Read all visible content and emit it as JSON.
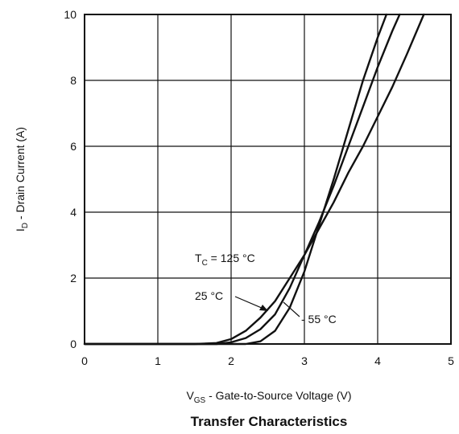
{
  "chart_data": {
    "type": "line",
    "title": "Transfer Characteristics",
    "xlabel": {
      "main": "V",
      "sub": "GS",
      "rest": " - Gate-to-Source Voltage (V)"
    },
    "ylabel": {
      "main": "I",
      "sub": "D",
      "rest": " - Drain Current (A)"
    },
    "xlim": [
      0,
      5
    ],
    "ylim": [
      0,
      10
    ],
    "xticks": [
      "0",
      "1",
      "2",
      "3",
      "4",
      "5"
    ],
    "yticks": [
      "0",
      "2",
      "4",
      "6",
      "8",
      "10"
    ],
    "grid": true,
    "series": [
      {
        "name": "125 °C",
        "x": [
          0,
          1.5,
          1.8,
          2.0,
          2.2,
          2.4,
          2.6,
          2.8,
          3.0,
          3.2,
          3.4,
          3.6,
          3.8,
          4.0,
          4.2,
          4.4,
          4.63
        ],
        "y": [
          0,
          0,
          0.03,
          0.15,
          0.4,
          0.8,
          1.3,
          2.0,
          2.7,
          3.5,
          4.3,
          5.2,
          6.0,
          6.9,
          7.8,
          8.8,
          10
        ]
      },
      {
        "name": "25 °C",
        "x": [
          0,
          1.8,
          2.0,
          2.2,
          2.4,
          2.6,
          2.8,
          3.0,
          3.2,
          3.4,
          3.6,
          3.8,
          4.0,
          4.2,
          4.3
        ],
        "y": [
          0,
          0,
          0.05,
          0.18,
          0.45,
          0.9,
          1.7,
          2.7,
          3.7,
          4.8,
          6.0,
          7.2,
          8.4,
          9.5,
          10
        ]
      },
      {
        "name": "- 55 °C",
        "x": [
          0,
          2.2,
          2.4,
          2.6,
          2.8,
          3.0,
          3.2,
          3.4,
          3.6,
          3.8,
          4.0,
          4.12
        ],
        "y": [
          0,
          0,
          0.08,
          0.4,
          1.1,
          2.2,
          3.6,
          5.0,
          6.5,
          8.0,
          9.3,
          10
        ]
      }
    ],
    "annotations": {
      "t125": {
        "prefix": "T",
        "sub": "C",
        "suffix": " = 125 °C"
      },
      "t25": "25 °C",
      "t55": "- 55 °C"
    }
  }
}
